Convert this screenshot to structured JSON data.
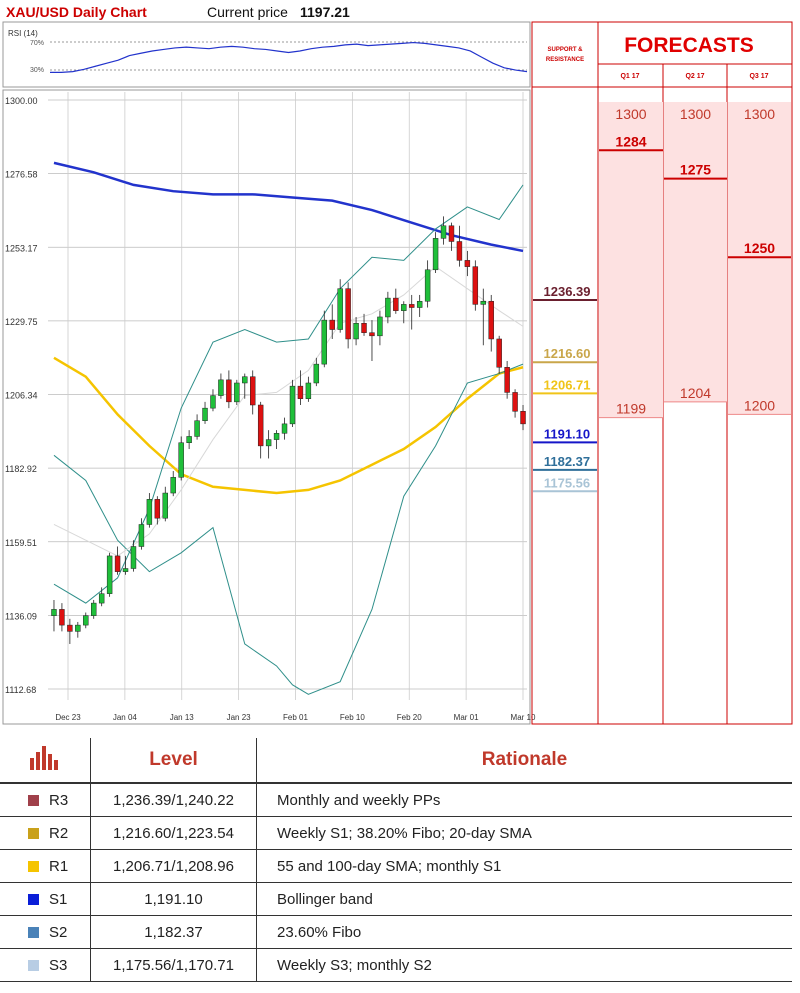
{
  "header": {
    "title": "XAU/USD Daily Chart",
    "price_label": "Current price",
    "price_value": "1197.21"
  },
  "rsi": {
    "label": "RSI (14)",
    "levels": [
      "70%",
      "30%"
    ]
  },
  "panel": {
    "sr_title_line1": "SUPPORT &",
    "sr_title_line2": "RESISTANCE",
    "forecasts_title": "FORECASTS",
    "quarters": [
      "Q1 17",
      "Q2 17",
      "Q3 17"
    ]
  },
  "colors": {
    "title_red": "#cc0000",
    "candle_up": "#1fbf3a",
    "candle_down": "#dd1111",
    "sma_blue": "#2233cc",
    "sma_yellow": "#f5c400",
    "bollinger": "#2f8f8a",
    "forecast_fill": "#fde1e1",
    "r3": "#6a1f2e",
    "r2": "#c9a64a",
    "r1": "#f0c419",
    "s1": "#1515c8",
    "s2": "#2f6f9a",
    "s3": "#a9c4d6"
  },
  "chart_data": {
    "type": "candlestick",
    "title": "XAU/USD Daily Chart",
    "y_ticks": [
      "1300.00",
      "1276.58",
      "1253.17",
      "1229.75",
      "1206.34",
      "1182.92",
      "1159.51",
      "1136.09",
      "1112.68"
    ],
    "ylim": [
      1112.68,
      1300.0
    ],
    "x_ticks": [
      "Dec 23",
      "Jan 04",
      "Jan 13",
      "Jan 23",
      "Feb 01",
      "Feb 10",
      "Feb 20",
      "Mar 01",
      "Mar 10"
    ],
    "candles": [
      {
        "o": 1136,
        "h": 1141,
        "l": 1131,
        "c": 1138
      },
      {
        "o": 1138,
        "h": 1140,
        "l": 1131,
        "c": 1133
      },
      {
        "o": 1133,
        "h": 1135,
        "l": 1127,
        "c": 1131
      },
      {
        "o": 1131,
        "h": 1134,
        "l": 1129,
        "c": 1133
      },
      {
        "o": 1133,
        "h": 1137,
        "l": 1132,
        "c": 1136
      },
      {
        "o": 1136,
        "h": 1141,
        "l": 1135,
        "c": 1140
      },
      {
        "o": 1140,
        "h": 1145,
        "l": 1139,
        "c": 1143
      },
      {
        "o": 1143,
        "h": 1156,
        "l": 1142,
        "c": 1155
      },
      {
        "o": 1155,
        "h": 1158,
        "l": 1149,
        "c": 1150
      },
      {
        "o": 1150,
        "h": 1155,
        "l": 1149,
        "c": 1151
      },
      {
        "o": 1151,
        "h": 1160,
        "l": 1150,
        "c": 1158
      },
      {
        "o": 1158,
        "h": 1167,
        "l": 1157,
        "c": 1165
      },
      {
        "o": 1165,
        "h": 1175,
        "l": 1164,
        "c": 1173
      },
      {
        "o": 1173,
        "h": 1174,
        "l": 1165,
        "c": 1167
      },
      {
        "o": 1167,
        "h": 1177,
        "l": 1166,
        "c": 1175
      },
      {
        "o": 1175,
        "h": 1182,
        "l": 1174,
        "c": 1180
      },
      {
        "o": 1180,
        "h": 1193,
        "l": 1179,
        "c": 1191
      },
      {
        "o": 1191,
        "h": 1195,
        "l": 1189,
        "c": 1193
      },
      {
        "o": 1193,
        "h": 1200,
        "l": 1192,
        "c": 1198
      },
      {
        "o": 1198,
        "h": 1204,
        "l": 1197,
        "c": 1202
      },
      {
        "o": 1202,
        "h": 1208,
        "l": 1201,
        "c": 1206
      },
      {
        "o": 1206,
        "h": 1213,
        "l": 1205,
        "c": 1211
      },
      {
        "o": 1211,
        "h": 1214,
        "l": 1202,
        "c": 1204
      },
      {
        "o": 1204,
        "h": 1211,
        "l": 1203,
        "c": 1210
      },
      {
        "o": 1210,
        "h": 1213,
        "l": 1205,
        "c": 1212
      },
      {
        "o": 1212,
        "h": 1214,
        "l": 1200,
        "c": 1203
      },
      {
        "o": 1203,
        "h": 1204,
        "l": 1186,
        "c": 1190
      },
      {
        "o": 1190,
        "h": 1195,
        "l": 1186,
        "c": 1192
      },
      {
        "o": 1192,
        "h": 1195,
        "l": 1189,
        "c": 1194
      },
      {
        "o": 1194,
        "h": 1199,
        "l": 1192,
        "c": 1197
      },
      {
        "o": 1197,
        "h": 1211,
        "l": 1196,
        "c": 1209
      },
      {
        "o": 1209,
        "h": 1214,
        "l": 1203,
        "c": 1205
      },
      {
        "o": 1205,
        "h": 1212,
        "l": 1204,
        "c": 1210
      },
      {
        "o": 1210,
        "h": 1218,
        "l": 1209,
        "c": 1216
      },
      {
        "o": 1216,
        "h": 1233,
        "l": 1215,
        "c": 1230
      },
      {
        "o": 1230,
        "h": 1235,
        "l": 1224,
        "c": 1227
      },
      {
        "o": 1227,
        "h": 1243,
        "l": 1226,
        "c": 1240
      },
      {
        "o": 1240,
        "h": 1242,
        "l": 1221,
        "c": 1224
      },
      {
        "o": 1224,
        "h": 1231,
        "l": 1222,
        "c": 1229
      },
      {
        "o": 1229,
        "h": 1232,
        "l": 1225,
        "c": 1226
      },
      {
        "o": 1226,
        "h": 1230,
        "l": 1217,
        "c": 1225
      },
      {
        "o": 1225,
        "h": 1233,
        "l": 1222,
        "c": 1231
      },
      {
        "o": 1231,
        "h": 1239,
        "l": 1229,
        "c": 1237
      },
      {
        "o": 1237,
        "h": 1240,
        "l": 1232,
        "c": 1233
      },
      {
        "o": 1233,
        "h": 1236,
        "l": 1229,
        "c": 1235
      },
      {
        "o": 1235,
        "h": 1238,
        "l": 1227,
        "c": 1234
      },
      {
        "o": 1234,
        "h": 1238,
        "l": 1231,
        "c": 1236
      },
      {
        "o": 1236,
        "h": 1249,
        "l": 1234,
        "c": 1246
      },
      {
        "o": 1246,
        "h": 1258,
        "l": 1245,
        "c": 1256
      },
      {
        "o": 1256,
        "h": 1263,
        "l": 1254,
        "c": 1260
      },
      {
        "o": 1260,
        "h": 1261,
        "l": 1252,
        "c": 1255
      },
      {
        "o": 1255,
        "h": 1260,
        "l": 1247,
        "c": 1249
      },
      {
        "o": 1249,
        "h": 1252,
        "l": 1244,
        "c": 1247
      },
      {
        "o": 1247,
        "h": 1249,
        "l": 1233,
        "c": 1235
      },
      {
        "o": 1235,
        "h": 1240,
        "l": 1222,
        "c": 1236
      },
      {
        "o": 1236,
        "h": 1238,
        "l": 1220,
        "c": 1224
      },
      {
        "o": 1224,
        "h": 1225,
        "l": 1213,
        "c": 1215
      },
      {
        "o": 1215,
        "h": 1217,
        "l": 1205,
        "c": 1207
      },
      {
        "o": 1207,
        "h": 1208,
        "l": 1199,
        "c": 1201
      },
      {
        "o": 1201,
        "h": 1203,
        "l": 1195,
        "c": 1197
      }
    ],
    "lines": [
      {
        "name": "blue SMA",
        "color": "#2233cc",
        "values": [
          [
            0,
            1280
          ],
          [
            5,
            1277
          ],
          [
            10,
            1273
          ],
          [
            15,
            1271
          ],
          [
            20,
            1270
          ],
          [
            25,
            1270
          ],
          [
            30,
            1269
          ],
          [
            35,
            1268
          ],
          [
            40,
            1265
          ],
          [
            45,
            1261
          ],
          [
            50,
            1257
          ],
          [
            55,
            1254
          ],
          [
            59,
            1252
          ]
        ]
      },
      {
        "name": "yellow SMA",
        "color": "#f5c400",
        "values": [
          [
            0,
            1218
          ],
          [
            4,
            1212
          ],
          [
            8,
            1200
          ],
          [
            12,
            1190
          ],
          [
            16,
            1181
          ],
          [
            20,
            1177
          ],
          [
            24,
            1176
          ],
          [
            28,
            1175
          ],
          [
            32,
            1176
          ],
          [
            36,
            1179
          ],
          [
            40,
            1184
          ],
          [
            44,
            1189
          ],
          [
            48,
            1196
          ],
          [
            52,
            1205
          ],
          [
            56,
            1213
          ],
          [
            59,
            1215
          ]
        ]
      },
      {
        "name": "upper band",
        "color": "#2f8f8a",
        "values": [
          [
            0,
            1146
          ],
          [
            4,
            1140
          ],
          [
            8,
            1148
          ],
          [
            12,
            1170
          ],
          [
            16,
            1202
          ],
          [
            20,
            1223
          ],
          [
            24,
            1227
          ],
          [
            28,
            1223
          ],
          [
            32,
            1224
          ],
          [
            36,
            1240
          ],
          [
            40,
            1250
          ],
          [
            44,
            1249
          ],
          [
            48,
            1259
          ],
          [
            52,
            1266
          ],
          [
            56,
            1262
          ],
          [
            59,
            1273
          ]
        ]
      },
      {
        "name": "lower band",
        "color": "#2f8f8a",
        "values": [
          [
            0,
            1187
          ],
          [
            4,
            1179
          ],
          [
            8,
            1160
          ],
          [
            12,
            1150
          ],
          [
            16,
            1156
          ],
          [
            20,
            1164
          ],
          [
            24,
            1127
          ],
          [
            28,
            1120
          ],
          [
            30,
            1114
          ],
          [
            32,
            1111
          ],
          [
            36,
            1115
          ],
          [
            40,
            1138
          ],
          [
            44,
            1174
          ],
          [
            48,
            1190
          ],
          [
            52,
            1210
          ],
          [
            56,
            1213
          ],
          [
            59,
            1216
          ]
        ]
      },
      {
        "name": "middle band",
        "color": "#d8d8d8",
        "values": [
          [
            0,
            1165
          ],
          [
            4,
            1160
          ],
          [
            8,
            1155
          ],
          [
            12,
            1162
          ],
          [
            16,
            1176
          ],
          [
            20,
            1192
          ],
          [
            24,
            1206
          ],
          [
            28,
            1207
          ],
          [
            32,
            1214
          ],
          [
            36,
            1229
          ],
          [
            40,
            1232
          ],
          [
            44,
            1238
          ],
          [
            48,
            1247
          ],
          [
            52,
            1240
          ],
          [
            56,
            1233
          ],
          [
            59,
            1228
          ]
        ]
      }
    ],
    "rsi_values": [
      30,
      30,
      31,
      34,
      38,
      42,
      46,
      52,
      55,
      58,
      60,
      62,
      63,
      62,
      61,
      63,
      64,
      63,
      61,
      60,
      58,
      56,
      58,
      61,
      63,
      64,
      66,
      67,
      65,
      66,
      67,
      68,
      69,
      68,
      66,
      64,
      62,
      58,
      50,
      42,
      36,
      33,
      31
    ]
  },
  "support_resistance": [
    {
      "id": "r3",
      "value": "1236.39",
      "price": 1236.39
    },
    {
      "id": "r2",
      "value": "1216.60",
      "price": 1216.6
    },
    {
      "id": "r1",
      "value": "1206.71",
      "price": 1206.71
    },
    {
      "id": "s1",
      "value": "1191.10",
      "price": 1191.1
    },
    {
      "id": "s2",
      "value": "1182.37",
      "price": 1182.37
    },
    {
      "id": "s3",
      "value": "1175.56",
      "price": 1175.56
    }
  ],
  "forecasts": [
    {
      "quarter": "Q1 17",
      "high": 1300,
      "mid": 1284,
      "low": 1199
    },
    {
      "quarter": "Q2 17",
      "high": 1300,
      "mid": 1275,
      "low": 1204
    },
    {
      "quarter": "Q3 17",
      "high": 1300,
      "mid": 1250,
      "low": 1200
    }
  ],
  "table": {
    "headers": [
      "Level",
      "Rationale"
    ],
    "rows": [
      {
        "name": "R3",
        "level": "1,236.39/1,240.22",
        "rationale": "Monthly and weekly PPs"
      },
      {
        "name": "R2",
        "level": "1,216.60/1,223.54",
        "rationale": "Weekly S1; 38.20% Fibo; 20-day SMA"
      },
      {
        "name": "R1",
        "level": "1,206.71/1,208.96",
        "rationale": "55 and 100-day SMA; monthly S1"
      },
      {
        "name": "S1",
        "level": "1,191.10",
        "rationale": "Bollinger band"
      },
      {
        "name": "S2",
        "level": "1,182.37",
        "rationale": "23.60% Fibo"
      },
      {
        "name": "S3",
        "level": "1,175.56/1,170.71",
        "rationale": "Weekly S3; monthly S2"
      }
    ]
  }
}
